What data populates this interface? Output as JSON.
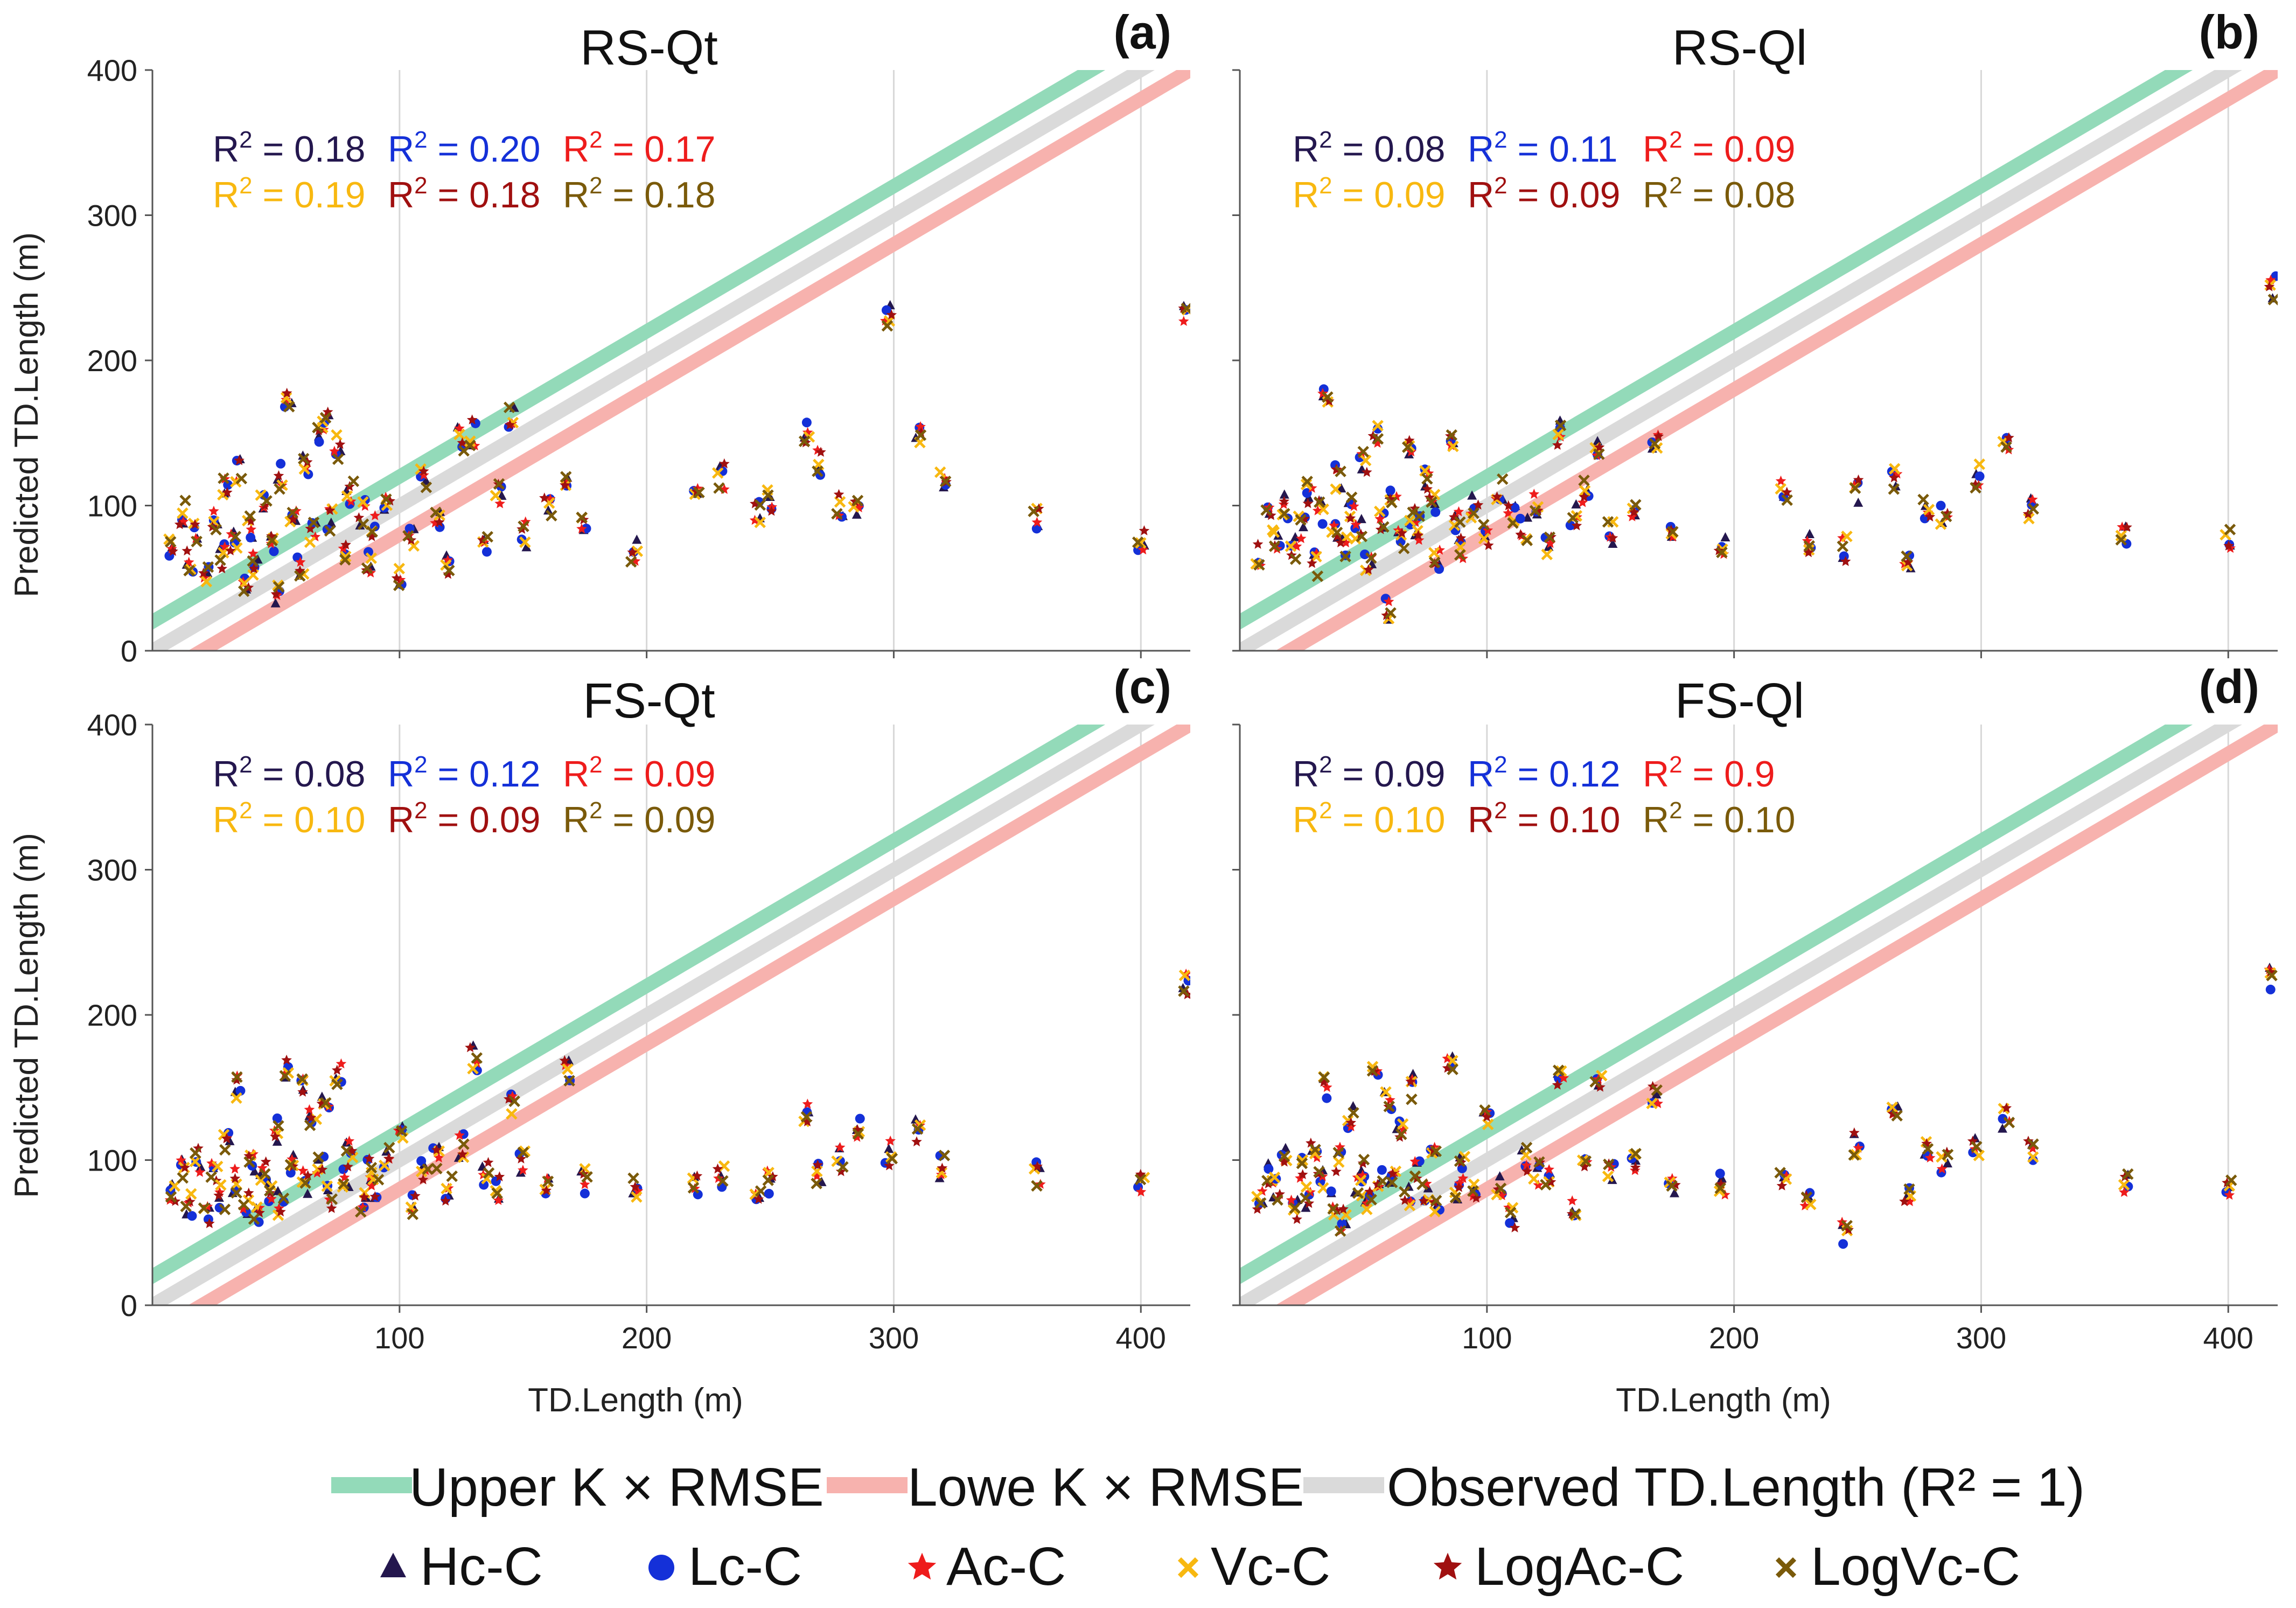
{
  "legend": {
    "lines": [
      {
        "key": "upper",
        "label": "Upper K × RMSE",
        "color": "#93dab9"
      },
      {
        "key": "lower",
        "label": "Lowe K × RMSE",
        "color": "#f7b2ae"
      },
      {
        "key": "observed",
        "label": "Observed TD.Length (R² = 1)",
        "color": "#dadada"
      }
    ],
    "markers": [
      {
        "label": "Hc-C",
        "color": "#24174e",
        "shape": "triangle"
      },
      {
        "label": "Lc-C",
        "color": "#1430d8",
        "shape": "circle"
      },
      {
        "label": "Ac-C",
        "color": "#ee1c1c",
        "shape": "star"
      },
      {
        "label": "Vc-C",
        "color": "#f8b810",
        "shape": "x"
      },
      {
        "label": "LogAc-C",
        "color": "#a01010",
        "shape": "star"
      },
      {
        "label": "LogVc-C",
        "color": "#7a5a0a",
        "shape": "x"
      }
    ]
  },
  "chart_data": [
    {
      "type": "scatter",
      "panel": "(a)",
      "title": "RS-Qt",
      "xlabel": "",
      "ylabel": "Predicted TD.Length (m)",
      "xlim": [
        0,
        420
      ],
      "ylim": [
        0,
        400
      ],
      "xticks": [
        100,
        200,
        300,
        400
      ],
      "yticks": [
        0,
        100,
        200,
        300,
        400
      ],
      "rmse_offset": 20,
      "r2": [
        {
          "series": "Hc-C",
          "text": "R² = 0.18",
          "color": "#24174e"
        },
        {
          "series": "Lc-C",
          "text": "R² = 0.20",
          "color": "#1430d8"
        },
        {
          "series": "Ac-C",
          "text": "R² = 0.17",
          "color": "#ee1c1c"
        },
        {
          "series": "Vc-C",
          "text": "R² = 0.19",
          "color": "#f8b810"
        },
        {
          "series": "LogAc-C",
          "text": "R² = 0.18",
          "color": "#a01010"
        },
        {
          "series": "LogVc-C",
          "text": "R² = 0.18",
          "color": "#7a5a0a"
        }
      ],
      "points": [
        [
          8,
          70
        ],
        [
          12,
          95
        ],
        [
          15,
          60
        ],
        [
          18,
          80
        ],
        [
          22,
          55
        ],
        [
          25,
          90
        ],
        [
          28,
          65
        ],
        [
          30,
          110
        ],
        [
          33,
          75
        ],
        [
          35,
          125
        ],
        [
          38,
          50
        ],
        [
          40,
          85
        ],
        [
          42,
          60
        ],
        [
          45,
          100
        ],
        [
          48,
          70
        ],
        [
          50,
          40
        ],
        [
          52,
          120
        ],
        [
          55,
          170
        ],
        [
          57,
          95
        ],
        [
          60,
          60
        ],
        [
          62,
          130
        ],
        [
          65,
          80
        ],
        [
          68,
          150
        ],
        [
          70,
          160
        ],
        [
          72,
          90
        ],
        [
          75,
          140
        ],
        [
          78,
          70
        ],
        [
          80,
          110
        ],
        [
          85,
          95
        ],
        [
          88,
          60
        ],
        [
          90,
          85
        ],
        [
          95,
          100
        ],
        [
          100,
          50
        ],
        [
          105,
          80
        ],
        [
          110,
          120
        ],
        [
          115,
          90
        ],
        [
          120,
          60
        ],
        [
          125,
          145
        ],
        [
          130,
          150
        ],
        [
          135,
          75
        ],
        [
          140,
          110
        ],
        [
          145,
          160
        ],
        [
          150,
          80
        ],
        [
          160,
          100
        ],
        [
          168,
          120
        ],
        [
          175,
          90
        ],
        [
          195,
          68
        ],
        [
          220,
          105
        ],
        [
          230,
          120
        ],
        [
          245,
          95
        ],
        [
          250,
          105
        ],
        [
          265,
          150
        ],
        [
          270,
          130
        ],
        [
          278,
          100
        ],
        [
          285,
          95
        ],
        [
          298,
          230
        ],
        [
          310,
          150
        ],
        [
          320,
          118
        ],
        [
          358,
          90
        ],
        [
          400,
          78
        ],
        [
          418,
          235
        ]
      ]
    },
    {
      "type": "scatter",
      "panel": "(b)",
      "title": "RS-Ql",
      "xlabel": "",
      "ylabel": "",
      "xlim": [
        0,
        420
      ],
      "ylim": [
        0,
        400
      ],
      "xticks": [
        100,
        200,
        300,
        400
      ],
      "yticks": [
        0,
        100,
        200,
        300,
        400
      ],
      "rmse_offset": 20,
      "r2": [
        {
          "series": "Hc-C",
          "text": "R² = 0.08",
          "color": "#24174e"
        },
        {
          "series": "Lc-C",
          "text": "R² = 0.11",
          "color": "#1430d8"
        },
        {
          "series": "Ac-C",
          "text": "R² = 0.09",
          "color": "#ee1c1c"
        },
        {
          "series": "Vc-C",
          "text": "R² = 0.09",
          "color": "#f8b810"
        },
        {
          "series": "LogAc-C",
          "text": "R² = 0.09",
          "color": "#a01010"
        },
        {
          "series": "LogVc-C",
          "text": "R² = 0.08",
          "color": "#7a5a0a"
        }
      ],
      "points": [
        [
          8,
          65
        ],
        [
          12,
          90
        ],
        [
          15,
          75
        ],
        [
          18,
          100
        ],
        [
          22,
          70
        ],
        [
          25,
          85
        ],
        [
          28,
          110
        ],
        [
          30,
          60
        ],
        [
          33,
          95
        ],
        [
          35,
          180
        ],
        [
          38,
          80
        ],
        [
          40,
          120
        ],
        [
          42,
          70
        ],
        [
          45,
          100
        ],
        [
          48,
          85
        ],
        [
          50,
          130
        ],
        [
          52,
          60
        ],
        [
          55,
          150
        ],
        [
          57,
          90
        ],
        [
          60,
          30
        ],
        [
          62,
          110
        ],
        [
          65,
          75
        ],
        [
          68,
          140
        ],
        [
          70,
          95
        ],
        [
          72,
          85
        ],
        [
          75,
          120
        ],
        [
          78,
          100
        ],
        [
          80,
          65
        ],
        [
          85,
          140
        ],
        [
          88,
          90
        ],
        [
          90,
          70
        ],
        [
          95,
          100
        ],
        [
          100,
          80
        ],
        [
          105,
          110
        ],
        [
          110,
          95
        ],
        [
          115,
          85
        ],
        [
          120,
          100
        ],
        [
          125,
          75
        ],
        [
          130,
          150
        ],
        [
          135,
          95
        ],
        [
          140,
          110
        ],
        [
          145,
          140
        ],
        [
          150,
          80
        ],
        [
          160,
          95
        ],
        [
          168,
          145
        ],
        [
          175,
          85
        ],
        [
          195,
          70
        ],
        [
          220,
          110
        ],
        [
          230,
          75
        ],
        [
          245,
          70
        ],
        [
          250,
          110
        ],
        [
          265,
          120
        ],
        [
          270,
          65
        ],
        [
          278,
          100
        ],
        [
          285,
          95
        ],
        [
          298,
          120
        ],
        [
          310,
          140
        ],
        [
          320,
          100
        ],
        [
          358,
          80
        ],
        [
          400,
          75
        ],
        [
          418,
          250
        ]
      ]
    },
    {
      "type": "scatter",
      "panel": "(c)",
      "title": "FS-Qt",
      "xlabel": "TD.Length (m)",
      "ylabel": "Predicted TD.Length (m)",
      "xlim": [
        0,
        420
      ],
      "ylim": [
        0,
        400
      ],
      "xticks": [
        100,
        200,
        300,
        400
      ],
      "yticks": [
        0,
        100,
        200,
        300,
        400
      ],
      "rmse_offset": 20,
      "r2": [
        {
          "series": "Hc-C",
          "text": "R² = 0.08",
          "color": "#24174e"
        },
        {
          "series": "Lc-C",
          "text": "R² = 0.12",
          "color": "#1430d8"
        },
        {
          "series": "Ac-C",
          "text": "R² = 0.09",
          "color": "#ee1c1c"
        },
        {
          "series": "Vc-C",
          "text": "R² = 0.10",
          "color": "#f8b810"
        },
        {
          "series": "LogAc-C",
          "text": "R² = 0.09",
          "color": "#a01010"
        },
        {
          "series": "LogVc-C",
          "text": "R² = 0.09",
          "color": "#7a5a0a"
        }
      ],
      "points": [
        [
          8,
          80
        ],
        [
          12,
          95
        ],
        [
          15,
          70
        ],
        [
          18,
          100
        ],
        [
          22,
          60
        ],
        [
          25,
          90
        ],
        [
          28,
          75
        ],
        [
          30,
          110
        ],
        [
          33,
          85
        ],
        [
          35,
          150
        ],
        [
          38,
          70
        ],
        [
          40,
          100
        ],
        [
          42,
          60
        ],
        [
          45,
          95
        ],
        [
          48,
          80
        ],
        [
          50,
          120
        ],
        [
          52,
          70
        ],
        [
          55,
          165
        ],
        [
          57,
          95
        ],
        [
          60,
          150
        ],
        [
          62,
          85
        ],
        [
          65,
          130
        ],
        [
          68,
          100
        ],
        [
          70,
          140
        ],
        [
          72,
          75
        ],
        [
          75,
          160
        ],
        [
          78,
          90
        ],
        [
          80,
          110
        ],
        [
          85,
          70
        ],
        [
          88,
          95
        ],
        [
          90,
          80
        ],
        [
          95,
          100
        ],
        [
          100,
          120
        ],
        [
          105,
          70
        ],
        [
          110,
          95
        ],
        [
          115,
          100
        ],
        [
          120,
          80
        ],
        [
          125,
          110
        ],
        [
          130,
          170
        ],
        [
          135,
          90
        ],
        [
          140,
          80
        ],
        [
          145,
          140
        ],
        [
          150,
          100
        ],
        [
          160,
          80
        ],
        [
          168,
          160
        ],
        [
          175,
          85
        ],
        [
          195,
          80
        ],
        [
          220,
          80
        ],
        [
          230,
          90
        ],
        [
          245,
          75
        ],
        [
          250,
          85
        ],
        [
          265,
          130
        ],
        [
          270,
          90
        ],
        [
          278,
          100
        ],
        [
          285,
          120
        ],
        [
          298,
          105
        ],
        [
          310,
          120
        ],
        [
          320,
          95
        ],
        [
          358,
          90
        ],
        [
          400,
          85
        ],
        [
          418,
          222
        ]
      ]
    },
    {
      "type": "scatter",
      "panel": "(d)",
      "title": "FS-Ql",
      "xlabel": "TD.Length (m)",
      "ylabel": "",
      "xlim": [
        0,
        420
      ],
      "ylim": [
        0,
        400
      ],
      "xticks": [
        100,
        200,
        300,
        400
      ],
      "yticks": [
        0,
        100,
        200,
        300,
        400
      ],
      "rmse_offset": 20,
      "r2": [
        {
          "series": "Hc-C",
          "text": "R² = 0.09",
          "color": "#24174e"
        },
        {
          "series": "Lc-C",
          "text": "R² = 0.12",
          "color": "#1430d8"
        },
        {
          "series": "Ac-C",
          "text": "R² = 0.9",
          "color": "#ee1c1c"
        },
        {
          "series": "Vc-C",
          "text": "R² = 0.10",
          "color": "#f8b810"
        },
        {
          "series": "LogAc-C",
          "text": "R² = 0.10",
          "color": "#a01010"
        },
        {
          "series": "LogVc-C",
          "text": "R² = 0.10",
          "color": "#7a5a0a"
        }
      ],
      "points": [
        [
          8,
          70
        ],
        [
          12,
          90
        ],
        [
          15,
          80
        ],
        [
          18,
          100
        ],
        [
          22,
          65
        ],
        [
          25,
          95
        ],
        [
          28,
          75
        ],
        [
          30,
          105
        ],
        [
          33,
          85
        ],
        [
          35,
          150
        ],
        [
          38,
          70
        ],
        [
          40,
          100
        ],
        [
          42,
          60
        ],
        [
          45,
          130
        ],
        [
          48,
          80
        ],
        [
          50,
          95
        ],
        [
          52,
          70
        ],
        [
          55,
          160
        ],
        [
          57,
          90
        ],
        [
          60,
          140
        ],
        [
          62,
          85
        ],
        [
          65,
          120
        ],
        [
          68,
          75
        ],
        [
          70,
          150
        ],
        [
          72,
          95
        ],
        [
          75,
          80
        ],
        [
          78,
          110
        ],
        [
          80,
          70
        ],
        [
          85,
          165
        ],
        [
          88,
          80
        ],
        [
          90,
          95
        ],
        [
          95,
          75
        ],
        [
          100,
          130
        ],
        [
          105,
          80
        ],
        [
          110,
          60
        ],
        [
          115,
          100
        ],
        [
          120,
          90
        ],
        [
          125,
          85
        ],
        [
          130,
          155
        ],
        [
          135,
          70
        ],
        [
          140,
          95
        ],
        [
          145,
          155
        ],
        [
          150,
          90
        ],
        [
          160,
          100
        ],
        [
          168,
          145
        ],
        [
          175,
          85
        ],
        [
          195,
          82
        ],
        [
          220,
          90
        ],
        [
          230,
          75
        ],
        [
          245,
          50
        ],
        [
          250,
          110
        ],
        [
          265,
          135
        ],
        [
          270,
          75
        ],
        [
          278,
          110
        ],
        [
          285,
          100
        ],
        [
          298,
          110
        ],
        [
          310,
          130
        ],
        [
          320,
          105
        ],
        [
          358,
          85
        ],
        [
          400,
          80
        ],
        [
          418,
          225
        ]
      ]
    }
  ]
}
